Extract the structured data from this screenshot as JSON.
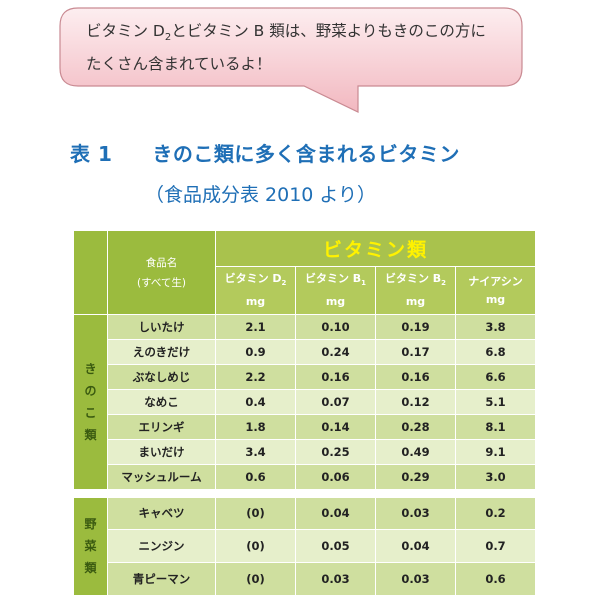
{
  "bubble": {
    "line1_a": "ビタミン D",
    "line1_sub": "2",
    "line1_b": "とビタミン B 類は、野菜よりもきのこの方に",
    "line2": "たくさん含まれているよ！"
  },
  "title": {
    "number": "表 1",
    "text": "きのこ類に多く含まれるビタミン"
  },
  "subtitle": "（食品成分表 2010 より）",
  "table": {
    "food_header_line1": "食品名",
    "food_header_line2": "(すべて生)",
    "vitamin_group_header": "ビタミン類",
    "columns": [
      {
        "name": "ビタミン D",
        "sub": "2",
        "unit": "mg"
      },
      {
        "name": "ビタミン B",
        "sub": "1",
        "unit": "mg"
      },
      {
        "name": "ビタミン B",
        "sub": "2",
        "unit": "mg"
      },
      {
        "name": "ナイアシン",
        "sub": "",
        "unit": "mg"
      }
    ],
    "groups": [
      {
        "label": [
          "き",
          "の",
          "こ",
          "類"
        ],
        "rows": [
          {
            "name": "しいたけ",
            "values": [
              "2.1",
              "0.10",
              "0.19",
              "3.8"
            ]
          },
          {
            "name": "えのきだけ",
            "values": [
              "0.9",
              "0.24",
              "0.17",
              "6.8"
            ]
          },
          {
            "name": "ぶなしめじ",
            "values": [
              "2.2",
              "0.16",
              "0.16",
              "6.6"
            ]
          },
          {
            "name": "なめこ",
            "values": [
              "0.4",
              "0.07",
              "0.12",
              "5.1"
            ]
          },
          {
            "name": "エリンギ",
            "values": [
              "1.8",
              "0.14",
              "0.28",
              "8.1"
            ]
          },
          {
            "name": "まいだけ",
            "values": [
              "3.4",
              "0.25",
              "0.49",
              "9.1"
            ]
          },
          {
            "name": "マッシュルーム",
            "values": [
              "0.6",
              "0.06",
              "0.29",
              "3.0"
            ]
          }
        ]
      },
      {
        "label": [
          "野",
          "菜",
          "類"
        ],
        "rows": [
          {
            "name": "キャベツ",
            "values": [
              "(0)",
              "0.04",
              "0.03",
              "0.2"
            ]
          },
          {
            "name": "ニンジン",
            "values": [
              "(0)",
              "0.05",
              "0.04",
              "0.7"
            ]
          },
          {
            "name": "青ピーマン",
            "values": [
              "(0)",
              "0.03",
              "0.03",
              "0.6"
            ]
          }
        ]
      }
    ]
  },
  "colors": {
    "title": "#1f6fb6",
    "bubble_fill_top": "#fbe3e6",
    "bubble_fill_bottom": "#f3bcc3",
    "bubble_stroke": "#c98a92",
    "header_green": "#9bbb3e",
    "header_text_yellow": "#fff200",
    "row_dark": "#cfdf9f",
    "row_light": "#e6efcb"
  }
}
